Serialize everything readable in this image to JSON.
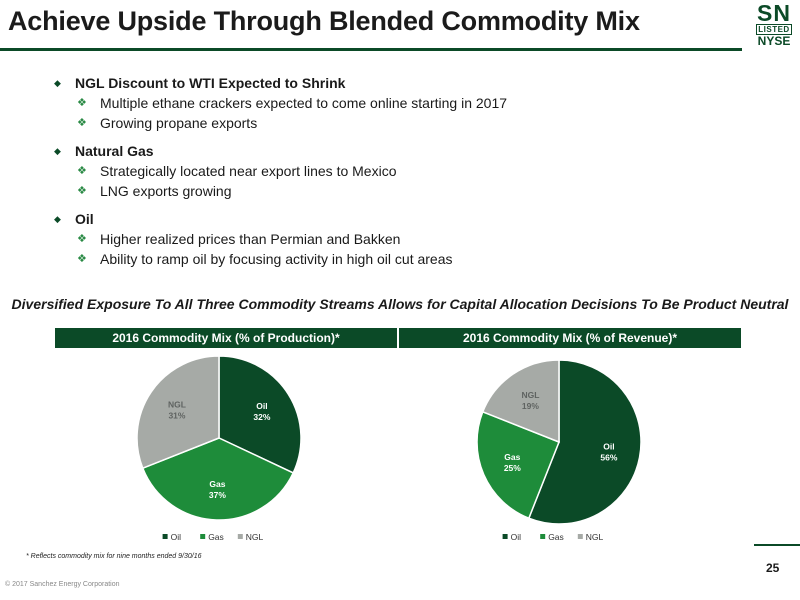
{
  "title": "Achieve Upside Through Blended Commodity Mix",
  "logo": {
    "top": "SN",
    "middle": "LISTED",
    "bottom": "NYSE"
  },
  "bullets": [
    {
      "label": "NGL Discount to WTI Expected to Shrink",
      "items": [
        "Multiple ethane crackers expected to come online starting in 2017",
        "Growing propane exports"
      ]
    },
    {
      "label": "Natural Gas",
      "items": [
        "Strategically located near export lines to Mexico",
        "LNG exports growing"
      ]
    },
    {
      "label": "Oil",
      "items": [
        "Higher realized prices than Permian and Bakken",
        "Ability to ramp oil by focusing activity in high oil cut areas"
      ]
    }
  ],
  "subheading": "Diversified Exposure To All Three Commodity Streams Allows for Capital Allocation Decisions To Be Product Neutral",
  "chart_data": [
    {
      "type": "pie",
      "title": "2016 Commodity Mix (% of Production)*",
      "categories": [
        "Oil",
        "Gas",
        "NGL"
      ],
      "values": [
        32,
        37,
        31
      ],
      "colors": [
        "#0b4a27",
        "#1e8c3a",
        "#a6aaa6"
      ],
      "legend": [
        "Oil",
        "Gas",
        "NGL"
      ],
      "legend_position": "bottom"
    },
    {
      "type": "pie",
      "title": "2016 Commodity Mix (% of Revenue)*",
      "categories": [
        "Oil",
        "Gas",
        "NGL"
      ],
      "values": [
        56,
        25,
        19
      ],
      "colors": [
        "#0b4a27",
        "#1e8c3a",
        "#a6aaa6"
      ],
      "legend": [
        "Oil",
        "Gas",
        "NGL"
      ],
      "legend_position": "bottom"
    }
  ],
  "footnote": "* Reflects commodity mix for nine months ended 9/30/16",
  "page_number": "25",
  "copyright": "© 2017 Sanchez Energy Corporation",
  "colors": {
    "brand": "#0b4a27",
    "accent": "#1e8c3a",
    "neutral": "#a6aaa6"
  }
}
